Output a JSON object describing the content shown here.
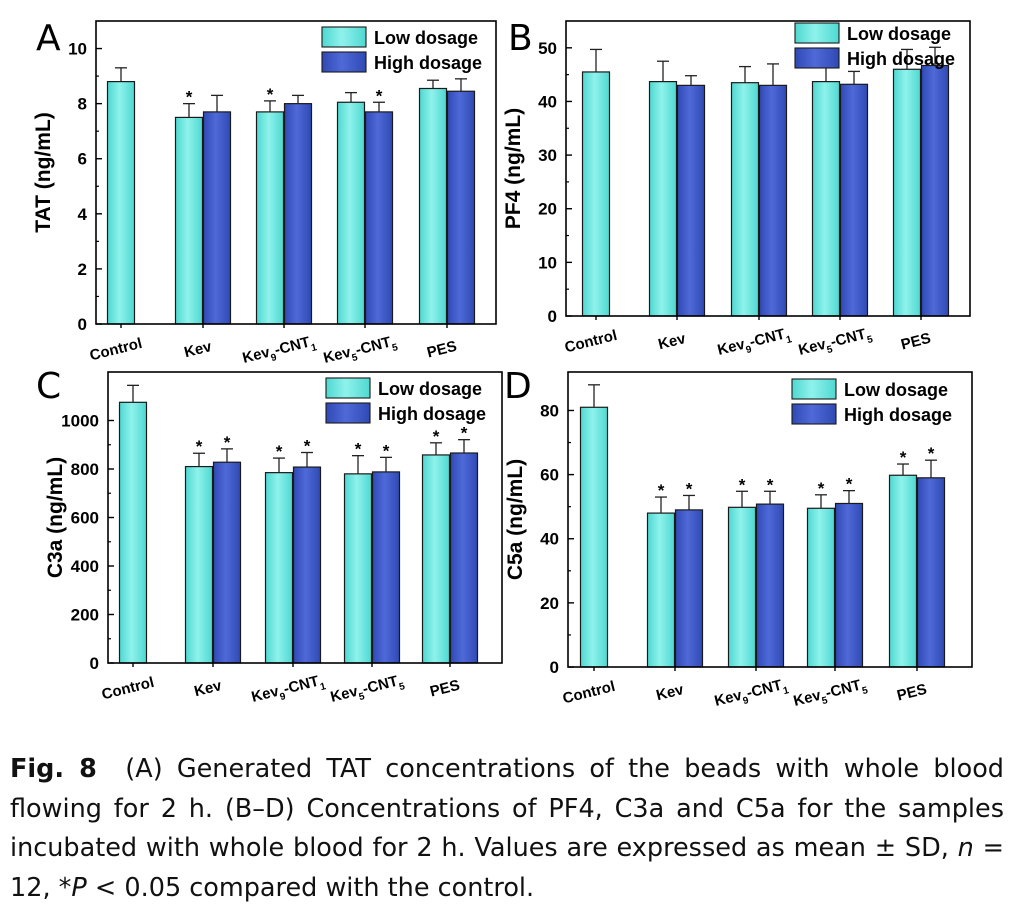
{
  "colors": {
    "low": "#4ed8d0",
    "high": "#2f49b4",
    "axis": "#000000"
  },
  "legend": {
    "low": "Low dosage",
    "high": "High dosage"
  },
  "chart_data": [
    {
      "panel": "A",
      "type": "bar",
      "categories": [
        {
          "main": "Control",
          "sub1": "",
          "mid": "",
          "sub2": ""
        },
        {
          "main": "Kev",
          "sub1": "",
          "mid": "",
          "sub2": ""
        },
        {
          "main": "Kev",
          "sub1": "9",
          "mid": "-CNT",
          "sub2": "1"
        },
        {
          "main": "Kev",
          "sub1": "5",
          "mid": "-CNT",
          "sub2": "5"
        },
        {
          "main": "PES",
          "sub1": "",
          "mid": "",
          "sub2": ""
        }
      ],
      "ylabel": "TAT (ng/mL)",
      "ylim": [
        0,
        11
      ],
      "yticks": [
        0,
        2,
        4,
        6,
        8,
        10
      ],
      "series": [
        {
          "name": "Low dosage",
          "values": [
            8.8,
            7.5,
            7.7,
            8.05,
            8.55
          ],
          "err": [
            0.5,
            0.5,
            0.4,
            0.35,
            0.3
          ],
          "sig": [
            false,
            true,
            true,
            false,
            false
          ]
        },
        {
          "name": "High dosage",
          "values": [
            null,
            7.7,
            8.0,
            7.7,
            8.45
          ],
          "err": [
            0,
            0.6,
            0.3,
            0.35,
            0.45
          ],
          "sig": [
            false,
            false,
            false,
            true,
            false
          ]
        }
      ],
      "legend_position": "top-right"
    },
    {
      "panel": "B",
      "type": "bar",
      "categories": [
        {
          "main": "Control",
          "sub1": "",
          "mid": "",
          "sub2": ""
        },
        {
          "main": "Kev",
          "sub1": "",
          "mid": "",
          "sub2": ""
        },
        {
          "main": "Kev",
          "sub1": "9",
          "mid": "-CNT",
          "sub2": "1"
        },
        {
          "main": "Kev",
          "sub1": "5",
          "mid": "-CNT",
          "sub2": "5"
        },
        {
          "main": "PES",
          "sub1": "",
          "mid": "",
          "sub2": ""
        }
      ],
      "ylabel": "PF4 (ng/mL)",
      "ylim": [
        0,
        55
      ],
      "yticks": [
        0,
        10,
        20,
        30,
        40,
        50
      ],
      "series": [
        {
          "name": "Low dosage",
          "values": [
            45.5,
            43.7,
            43.5,
            43.7,
            46
          ],
          "err": [
            4.2,
            3.8,
            3.0,
            3.6,
            3.7
          ],
          "sig": [
            false,
            false,
            false,
            false,
            false
          ]
        },
        {
          "name": "High dosage",
          "values": [
            null,
            43,
            43,
            43.2,
            46.7
          ],
          "err": [
            0,
            1.8,
            4.0,
            2.4,
            3.4
          ],
          "sig": [
            false,
            false,
            false,
            false,
            false
          ]
        }
      ],
      "legend_position": "top-right"
    },
    {
      "panel": "C",
      "type": "bar",
      "categories": [
        {
          "main": "Control",
          "sub1": "",
          "mid": "",
          "sub2": ""
        },
        {
          "main": "Kev",
          "sub1": "",
          "mid": "",
          "sub2": ""
        },
        {
          "main": "Kev",
          "sub1": "9",
          "mid": "-CNT",
          "sub2": "1"
        },
        {
          "main": "Kev",
          "sub1": "5",
          "mid": "-CNT",
          "sub2": "5"
        },
        {
          "main": "PES",
          "sub1": "",
          "mid": "",
          "sub2": ""
        }
      ],
      "ylabel": "C3a (ng/mL)",
      "ylim": [
        0,
        1200
      ],
      "yticks": [
        0,
        200,
        400,
        600,
        800,
        1000
      ],
      "series": [
        {
          "name": "Low dosage",
          "values": [
            1075,
            810,
            785,
            780,
            858
          ],
          "err": [
            70,
            55,
            60,
            75,
            50
          ],
          "sig": [
            false,
            true,
            true,
            true,
            true
          ]
        },
        {
          "name": "High dosage",
          "values": [
            null,
            828,
            808,
            788,
            866
          ],
          "err": [
            0,
            55,
            60,
            60,
            55
          ],
          "sig": [
            false,
            true,
            true,
            true,
            true
          ]
        }
      ],
      "legend_position": "top-right"
    },
    {
      "panel": "D",
      "type": "bar",
      "categories": [
        {
          "main": "Control",
          "sub1": "",
          "mid": "",
          "sub2": ""
        },
        {
          "main": "Kev",
          "sub1": "",
          "mid": "",
          "sub2": ""
        },
        {
          "main": "Kev",
          "sub1": "9",
          "mid": "-CNT",
          "sub2": "1"
        },
        {
          "main": "Kev",
          "sub1": "5",
          "mid": "-CNT",
          "sub2": "5"
        },
        {
          "main": "PES",
          "sub1": "",
          "mid": "",
          "sub2": ""
        }
      ],
      "ylabel": "C5a (ng/mL)",
      "ylim": [
        0,
        92
      ],
      "yticks": [
        0,
        20,
        40,
        60,
        80
      ],
      "series": [
        {
          "name": "Low dosage",
          "values": [
            81,
            48,
            49.8,
            49.5,
            59.8
          ],
          "err": [
            7,
            5,
            5,
            4.2,
            3.5
          ],
          "sig": [
            false,
            true,
            true,
            true,
            true
          ]
        },
        {
          "name": "High dosage",
          "values": [
            null,
            49,
            50.8,
            51,
            59
          ],
          "err": [
            0,
            4.5,
            4,
            4,
            5.5
          ],
          "sig": [
            false,
            true,
            true,
            true,
            true
          ]
        }
      ],
      "legend_position": "top-right"
    }
  ],
  "caption": {
    "label": "Fig. 8",
    "part1": "(A) Generated TAT concentrations of the beads with whole blood flowing for 2 h. (B–D) Concentrations of PF4, C3a and C5a for the samples incubated with whole blood for 2 h. Values are expressed as mean ± SD, ",
    "n_symbol": "n",
    "part2": " = 12, ",
    "p_symbol": "*P",
    "part3": " < 0.05 compared with the control."
  }
}
